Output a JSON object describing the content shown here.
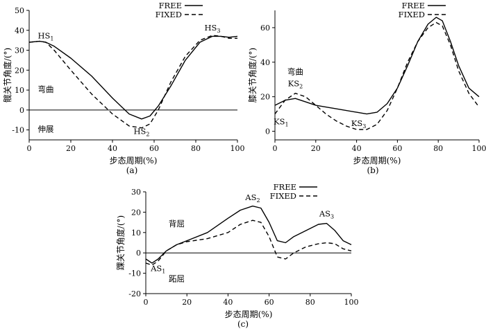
{
  "chart_data": [
    {
      "type": "line",
      "panel_label": "(a)",
      "xlabel": "步态周期(%)",
      "ylabel": "髋关节角度/(°)",
      "xlim": [
        0,
        100
      ],
      "ylim": [
        -15,
        50
      ],
      "xticks": [
        0,
        20,
        40,
        60,
        80,
        100
      ],
      "yticks": [
        -10,
        0,
        10,
        20,
        30,
        40,
        50
      ],
      "zero_line": true,
      "legend_position": "top-right",
      "series": [
        {
          "name": "FREE",
          "style": "solid",
          "x": [
            0,
            5,
            8,
            12,
            20,
            30,
            40,
            48,
            54,
            58,
            62,
            68,
            75,
            82,
            88,
            92,
            96,
            100
          ],
          "y": [
            34,
            34.5,
            34,
            32,
            26,
            17,
            6,
            -2,
            -4.5,
            -3,
            2,
            12,
            25,
            34,
            37,
            37,
            36.5,
            37
          ]
        },
        {
          "name": "FIXED",
          "style": "dashed",
          "x": [
            0,
            5,
            8,
            12,
            20,
            30,
            40,
            48,
            54,
            58,
            62,
            68,
            75,
            82,
            88,
            92,
            96,
            100
          ],
          "y": [
            34,
            34.5,
            34,
            30,
            20,
            8,
            -2,
            -8,
            -9,
            -7,
            0,
            14,
            27,
            35,
            37.5,
            37,
            36,
            36
          ]
        }
      ],
      "annotations": [
        {
          "text": "HS",
          "sub": "1",
          "x": 8,
          "y": 36
        },
        {
          "text": "HS",
          "sub": "2",
          "x": 54,
          "y": -12
        },
        {
          "text": "HS",
          "sub": "3",
          "x": 88,
          "y": 40
        },
        {
          "text": "弯曲",
          "x": 8,
          "y": 9
        },
        {
          "text": "伸展",
          "x": 8,
          "y": -11
        }
      ],
      "legend_labels": [
        "FREE",
        "FIXED"
      ]
    },
    {
      "type": "line",
      "panel_label": "(b)",
      "xlabel": "步态周期(%)",
      "ylabel": "膝关节角度/(°)",
      "xlim": [
        0,
        100
      ],
      "ylim": [
        -5,
        70
      ],
      "xticks": [
        0,
        20,
        40,
        60,
        80,
        100
      ],
      "yticks": [
        0,
        20,
        40,
        60
      ],
      "zero_line": false,
      "legend_position": "top-right",
      "series": [
        {
          "name": "FREE",
          "style": "solid",
          "x": [
            0,
            5,
            10,
            15,
            20,
            30,
            40,
            45,
            50,
            55,
            60,
            65,
            70,
            75,
            79,
            82,
            86,
            90,
            95,
            100
          ],
          "y": [
            15,
            18,
            19,
            17,
            15,
            13,
            11,
            10,
            11,
            16,
            25,
            38,
            52,
            62,
            66,
            64,
            52,
            38,
            25,
            20
          ]
        },
        {
          "name": "FIXED",
          "style": "dashed",
          "x": [
            0,
            5,
            10,
            15,
            20,
            25,
            30,
            35,
            40,
            45,
            50,
            55,
            60,
            65,
            70,
            75,
            79,
            82,
            86,
            90,
            95,
            100
          ],
          "y": [
            10,
            18,
            22,
            20,
            15,
            10,
            6,
            3,
            1,
            1,
            4,
            12,
            25,
            40,
            52,
            60,
            63,
            61,
            50,
            35,
            22,
            14
          ]
        }
      ],
      "annotations": [
        {
          "text": "弯曲",
          "x": 10,
          "y": 33
        },
        {
          "text": "KS",
          "sub": "1",
          "x": 3,
          "y": 4
        },
        {
          "text": "KS",
          "sub": "2",
          "x": 10,
          "y": 26
        },
        {
          "text": "KS",
          "sub": "3",
          "x": 41,
          "y": 3
        }
      ],
      "legend_labels": [
        "FREE",
        "FIXED"
      ]
    },
    {
      "type": "line",
      "panel_label": "(c)",
      "xlabel": "步态周期(%)",
      "ylabel": "踝关节角度/(°)",
      "xlim": [
        0,
        100
      ],
      "ylim": [
        -20,
        30
      ],
      "xticks": [
        0,
        20,
        40,
        60,
        80,
        100
      ],
      "yticks": [
        -20,
        -10,
        0,
        10,
        20,
        30
      ],
      "zero_line": true,
      "legend_position": "top-right",
      "series": [
        {
          "name": "FREE",
          "style": "solid",
          "x": [
            0,
            3,
            6,
            10,
            15,
            20,
            30,
            40,
            46,
            52,
            56,
            60,
            64,
            68,
            72,
            78,
            84,
            88,
            92,
            96,
            100
          ],
          "y": [
            -3,
            -5,
            -3,
            1,
            4,
            6,
            10,
            17,
            21,
            23,
            22,
            15,
            6,
            5,
            8,
            11,
            14,
            14.5,
            11,
            6,
            4
          ]
        },
        {
          "name": "FIXED",
          "style": "dashed",
          "x": [
            0,
            3,
            6,
            10,
            15,
            20,
            30,
            40,
            46,
            52,
            56,
            60,
            64,
            68,
            72,
            78,
            84,
            88,
            92,
            96,
            100
          ],
          "y": [
            -5,
            -6,
            -4,
            1,
            4,
            5.5,
            7,
            10,
            14,
            16,
            15,
            8,
            -2,
            -3,
            0,
            3,
            4.5,
            5,
            4.5,
            2,
            1
          ]
        }
      ],
      "annotations": [
        {
          "text": "AS",
          "sub": "1",
          "x": 6,
          "y": -9
        },
        {
          "text": "AS",
          "sub": "2",
          "x": 52,
          "y": 26
        },
        {
          "text": "AS",
          "sub": "3",
          "x": 88,
          "y": 18
        },
        {
          "text": "背屈",
          "x": 15,
          "y": 13
        },
        {
          "text": "跖屈",
          "x": 15,
          "y": -14
        }
      ],
      "legend_labels": [
        "FREE",
        "FIXED"
      ]
    }
  ]
}
